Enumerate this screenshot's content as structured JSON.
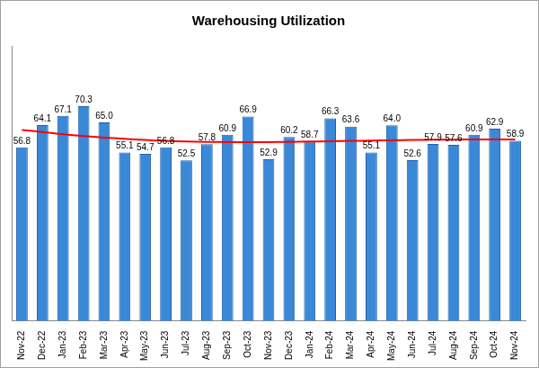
{
  "chart_data": {
    "type": "bar",
    "title": "Warehousing Utilization",
    "categories": [
      "Nov-22",
      "Dec-22",
      "Jan-23",
      "Feb-23",
      "Mar-23",
      "Apr-23",
      "May-23",
      "Jun-23",
      "Jul-23",
      "Aug-23",
      "Sep-23",
      "Oct-23",
      "Nov-23",
      "Dec-23",
      "Jan-24",
      "Feb-24",
      "Mar-24",
      "Apr-24",
      "May-24",
      "Jun-24",
      "Jul-24",
      "Aug-24",
      "Sep-24",
      "Oct-24",
      "Nov-24"
    ],
    "series": [
      {
        "type": "bar",
        "color": "#3a88d8",
        "data_labels": true,
        "values": [
          56.8,
          64.1,
          67.1,
          70.3,
          65.0,
          55.1,
          54.7,
          56.8,
          52.5,
          57.8,
          60.9,
          66.9,
          52.9,
          60.2,
          58.7,
          66.3,
          63.6,
          55.1,
          64.0,
          52.6,
          57.9,
          57.6,
          60.9,
          62.9,
          58.9
        ],
        "value_labels": [
          "56.8",
          "64.1",
          "67.1",
          "70.3",
          "65.0",
          "55.1",
          "54.7",
          "56.8",
          "52.5",
          "57.8",
          "60.9",
          "66.9",
          "52.9",
          "60.2",
          "58.7",
          "66.3",
          "63.6",
          "55.1",
          "64.0",
          "52.6",
          "57.9",
          "57.6",
          "60.9",
          "62.9",
          "58.9"
        ]
      },
      {
        "type": "line",
        "color": "#ff0000",
        "values": [
          62.5,
          61.8,
          61.1,
          60.5,
          60.0,
          59.6,
          59.2,
          58.9,
          58.7,
          58.6,
          58.5,
          58.5,
          58.5,
          58.6,
          58.7,
          58.8,
          58.9,
          59.0,
          59.1,
          59.2,
          59.3,
          59.3,
          59.4,
          59.4,
          59.4
        ]
      }
    ],
    "ylim": [
      0,
      90
    ],
    "grid": false,
    "tick_labels": "x"
  }
}
